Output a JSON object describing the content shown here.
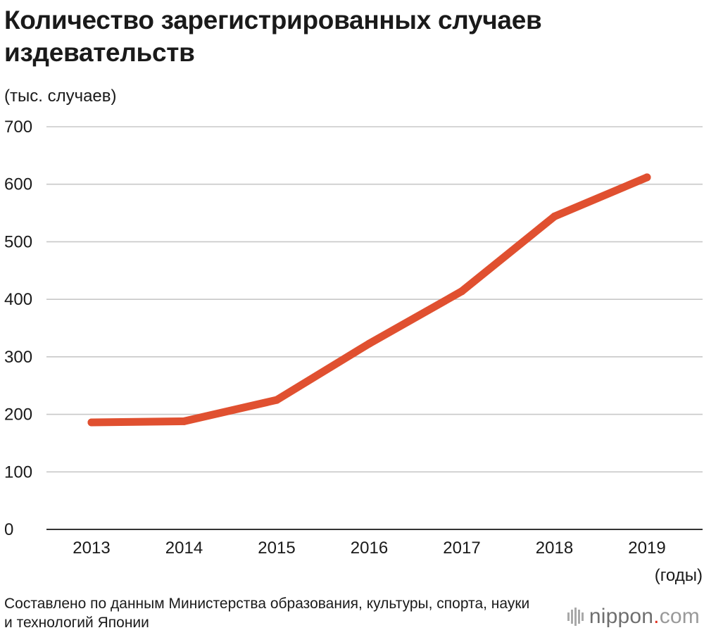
{
  "title": "Количество зарегистрированных случаев издевательств",
  "unit_label": "(тыс. случаев)",
  "x_unit_label": "(годы)",
  "source": "Составлено по данным Министерства образования, культуры, спорта, науки и технологий Японии",
  "logo": {
    "name": "nippon",
    "dot": ".",
    "tld": "com"
  },
  "colors": {
    "line": "#E05030",
    "grid": "#c8c8c8",
    "axis": "#333333",
    "text": "#1a1a1a"
  },
  "chart_data": {
    "type": "line",
    "title": "Количество зарегистрированных случаев издевательств",
    "ylabel": "(тыс. случаев)",
    "xlabel": "(годы)",
    "categories": [
      "2013",
      "2014",
      "2015",
      "2016",
      "2017",
      "2018",
      "2019"
    ],
    "series": [
      {
        "values": [
          186,
          188,
          225,
          323,
          414,
          544,
          612
        ]
      }
    ],
    "ylim": [
      0,
      700
    ],
    "yticks": [
      "0",
      "100",
      "200",
      "300",
      "400",
      "500",
      "600",
      "700"
    ],
    "grid": true,
    "legend": "none"
  }
}
